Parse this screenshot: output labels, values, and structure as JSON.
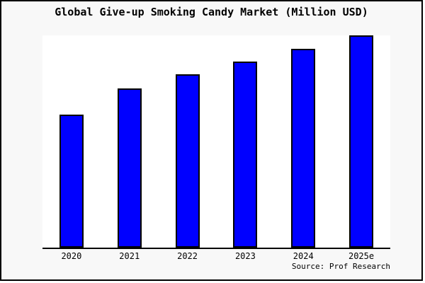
{
  "title": "Global Give-up Smoking Candy Market (Million USD)",
  "source_credit": "Source: Prof Research",
  "colors": {
    "bar_fill": "#0000FF",
    "bar_border": "#000000",
    "outer_background": "#F8F8F8",
    "plot_background": "#FFFFFF",
    "frame_border": "#000000",
    "text": "#000000"
  },
  "chart_data": {
    "type": "bar",
    "title": "Global Give-up Smoking Candy Market (Million USD)",
    "categories": [
      "2020",
      "2021",
      "2022",
      "2023",
      "2024",
      "2025e"
    ],
    "values": [
      62.7,
      75,
      81.7,
      87.7,
      93.7,
      100
    ],
    "xlabel": "",
    "ylabel": "",
    "ylim": [
      0,
      100
    ],
    "y_axis_visible": false,
    "grid": false,
    "legend": false,
    "annotations": [
      "Source: Prof Research"
    ],
    "note": "No y-axis tick labels are rendered in the image; values are relative bar heights normalized so 2025e = 100."
  }
}
